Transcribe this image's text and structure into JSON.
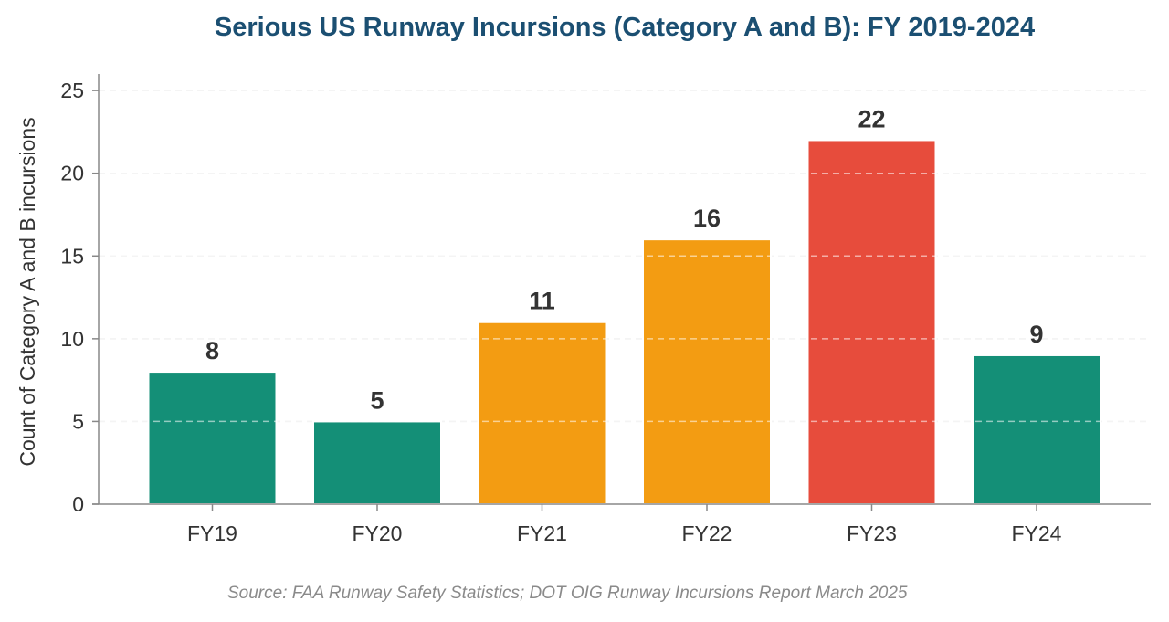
{
  "chart_data": {
    "type": "bar",
    "title": "Serious US Runway Incursions (Category A and B): FY 2019-2024",
    "xlabel": "",
    "ylabel": "Count of Category A and B incursions",
    "categories": [
      "FY19",
      "FY20",
      "FY21",
      "FY22",
      "FY23",
      "FY24"
    ],
    "values": [
      8,
      5,
      11,
      16,
      22,
      9
    ],
    "data_labels": [
      "8",
      "5",
      "11",
      "16",
      "22",
      "9"
    ],
    "colors": [
      "#148f77",
      "#148f77",
      "#f39c12",
      "#f39c12",
      "#e74c3c",
      "#148f77"
    ],
    "ylim": [
      0,
      26
    ],
    "yticks": [
      0,
      5,
      10,
      15,
      20,
      25
    ],
    "ytick_labels": [
      "0",
      "5",
      "10",
      "15",
      "20",
      "25"
    ],
    "grid": "horizontal dashed",
    "legend": "none"
  },
  "source": "Source: FAA Runway Safety Statistics; DOT OIG Runway Incursions Report March 2025",
  "colors": {
    "title": "#1b4f72",
    "text": "#333333",
    "axis": "#888888",
    "grid": "#e6e6e6",
    "source": "#8a8a8a"
  }
}
